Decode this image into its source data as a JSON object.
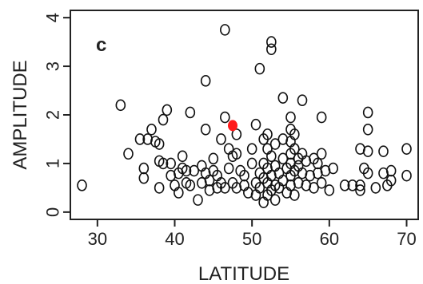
{
  "chart_data": {
    "type": "scatter",
    "panel_label": "c",
    "xlabel": "LATITUDE",
    "ylabel": "AMPLITUDE",
    "xlim": [
      26.5,
      71.5
    ],
    "ylim": [
      -0.15,
      4.15
    ],
    "xticks": [
      30,
      40,
      50,
      60,
      70
    ],
    "yticks": [
      0,
      1,
      2,
      3,
      4
    ],
    "colors": {
      "open": "#111111",
      "highlight": "#ff1a1a",
      "frame": "#222222"
    },
    "series": [
      {
        "marker": "open-circle",
        "points": [
          [
            28.0,
            0.55
          ],
          [
            33.0,
            2.2
          ],
          [
            34.0,
            1.2
          ],
          [
            35.5,
            1.5
          ],
          [
            36.0,
            0.9
          ],
          [
            36.0,
            0.7
          ],
          [
            36.5,
            1.5
          ],
          [
            37.0,
            1.7
          ],
          [
            37.5,
            1.45
          ],
          [
            38.0,
            1.4
          ],
          [
            38.0,
            1.05
          ],
          [
            38.0,
            0.5
          ],
          [
            38.5,
            1.9
          ],
          [
            38.5,
            1.0
          ],
          [
            39.0,
            2.1
          ],
          [
            39.5,
            1.0
          ],
          [
            39.5,
            0.75
          ],
          [
            40.0,
            0.55
          ],
          [
            40.5,
            0.8
          ],
          [
            40.5,
            0.4
          ],
          [
            41.0,
            1.15
          ],
          [
            41.0,
            0.9
          ],
          [
            41.5,
            0.6
          ],
          [
            41.5,
            0.85
          ],
          [
            42.0,
            2.05
          ],
          [
            42.0,
            0.55
          ],
          [
            42.5,
            0.85
          ],
          [
            43.0,
            0.25
          ],
          [
            43.5,
            0.95
          ],
          [
            43.5,
            0.6
          ],
          [
            44.0,
            2.7
          ],
          [
            44.0,
            1.7
          ],
          [
            44.0,
            0.8
          ],
          [
            44.5,
            0.45
          ],
          [
            44.5,
            0.65
          ],
          [
            45.0,
            0.85
          ],
          [
            45.0,
            1.1
          ],
          [
            45.5,
            0.5
          ],
          [
            45.5,
            0.75
          ],
          [
            46.0,
            1.5
          ],
          [
            46.0,
            0.6
          ],
          [
            46.5,
            3.75
          ],
          [
            46.5,
            1.95
          ],
          [
            46.5,
            0.5
          ],
          [
            47.0,
            1.3
          ],
          [
            47.0,
            0.9
          ],
          [
            47.5,
            0.6
          ],
          [
            47.5,
            1.15
          ],
          [
            48.0,
            0.5
          ],
          [
            48.0,
            1.6
          ],
          [
            48.0,
            1.2
          ],
          [
            48.5,
            0.85
          ],
          [
            49.0,
            0.55
          ],
          [
            49.0,
            0.75
          ],
          [
            49.5,
            0.4
          ],
          [
            50.0,
            1.3
          ],
          [
            50.0,
            1.0
          ],
          [
            50.5,
            1.8
          ],
          [
            50.5,
            0.6
          ],
          [
            50.5,
            0.35
          ],
          [
            51.0,
            2.95
          ],
          [
            51.0,
            0.5
          ],
          [
            51.0,
            0.8
          ],
          [
            51.5,
            1.5
          ],
          [
            51.5,
            0.7
          ],
          [
            51.5,
            0.2
          ],
          [
            51.5,
            1.0
          ],
          [
            52.0,
            1.6
          ],
          [
            52.0,
            1.3
          ],
          [
            52.0,
            0.9
          ],
          [
            52.0,
            0.6
          ],
          [
            52.0,
            0.35
          ],
          [
            52.5,
            3.5
          ],
          [
            52.5,
            3.35
          ],
          [
            52.5,
            1.15
          ],
          [
            52.5,
            0.75
          ],
          [
            52.5,
            0.45
          ],
          [
            53.0,
            1.4
          ],
          [
            53.0,
            0.95
          ],
          [
            53.0,
            0.55
          ],
          [
            53.0,
            0.25
          ],
          [
            53.5,
            0.8
          ],
          [
            53.5,
            0.5
          ],
          [
            54.0,
            2.35
          ],
          [
            54.0,
            1.5
          ],
          [
            54.0,
            1.1
          ],
          [
            54.0,
            0.65
          ],
          [
            54.5,
            0.9
          ],
          [
            54.5,
            0.4
          ],
          [
            55.0,
            1.95
          ],
          [
            55.0,
            1.7
          ],
          [
            55.0,
            1.45
          ],
          [
            55.0,
            1.2
          ],
          [
            55.0,
            1.0
          ],
          [
            55.0,
            0.75
          ],
          [
            55.0,
            0.55
          ],
          [
            55.5,
            1.6
          ],
          [
            55.5,
            1.3
          ],
          [
            55.5,
            0.85
          ],
          [
            55.5,
            0.35
          ],
          [
            56.0,
            1.1
          ],
          [
            56.0,
            0.95
          ],
          [
            56.0,
            0.6
          ],
          [
            56.5,
            2.3
          ],
          [
            56.5,
            1.2
          ],
          [
            56.5,
            0.8
          ],
          [
            57.0,
            1.05
          ],
          [
            57.0,
            0.55
          ],
          [
            57.5,
            0.75
          ],
          [
            58.0,
            1.1
          ],
          [
            58.0,
            0.5
          ],
          [
            58.5,
            0.8
          ],
          [
            58.5,
            1.0
          ],
          [
            59.0,
            1.95
          ],
          [
            59.0,
            1.2
          ],
          [
            59.0,
            0.6
          ],
          [
            59.5,
            0.85
          ],
          [
            60.0,
            0.45
          ],
          [
            60.5,
            0.9
          ],
          [
            62.0,
            0.55
          ],
          [
            63.0,
            0.55
          ],
          [
            64.0,
            1.3
          ],
          [
            64.0,
            0.55
          ],
          [
            64.0,
            0.45
          ],
          [
            64.5,
            0.9
          ],
          [
            65.0,
            2.05
          ],
          [
            65.0,
            1.7
          ],
          [
            65.0,
            1.25
          ],
          [
            65.0,
            0.8
          ],
          [
            66.0,
            0.5
          ],
          [
            67.0,
            1.25
          ],
          [
            67.0,
            0.8
          ],
          [
            67.5,
            0.55
          ],
          [
            68.0,
            0.85
          ],
          [
            68.0,
            0.65
          ],
          [
            70.0,
            1.3
          ],
          [
            70.0,
            0.75
          ]
        ]
      },
      {
        "marker": "filled-circle",
        "points": [
          [
            47.5,
            1.78
          ]
        ]
      }
    ]
  }
}
